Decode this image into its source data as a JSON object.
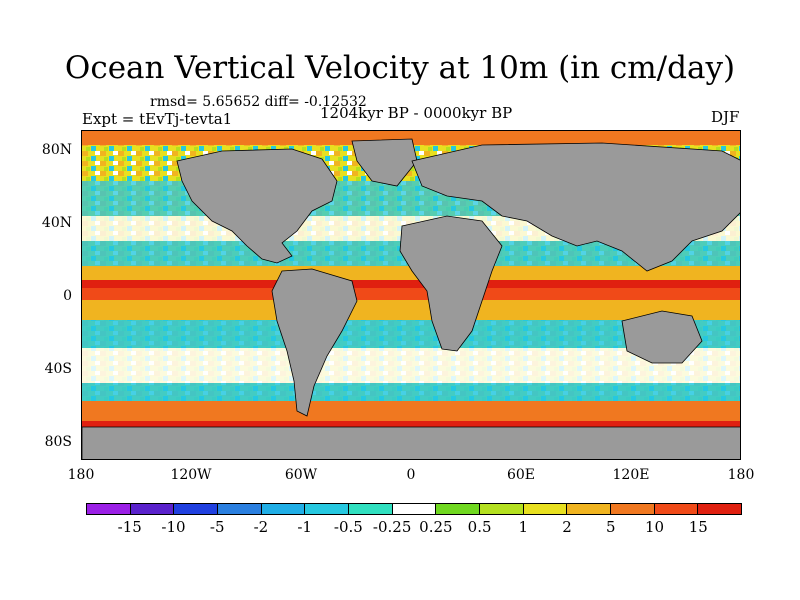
{
  "title": "Ocean Vertical Velocity at 10m (in cm/day)",
  "stats": "rmsd= 5.65652 diff= -0.12532",
  "experiment": "Expt = tEvTj-tevta1",
  "period": "1204kyr BP - 0000kyr BP",
  "season": "DJF",
  "lat_ticks": [
    "80N",
    "40N",
    "0",
    "40S",
    "80S"
  ],
  "lon_ticks": [
    "180",
    "120W",
    "60W",
    "0",
    "60E",
    "120E",
    "180"
  ],
  "colorbar": {
    "labels": [
      "-15",
      "-10",
      "-5",
      "-2",
      "-1",
      "-0.5",
      "-0.25",
      "0.25",
      "0.5",
      "1",
      "2",
      "5",
      "10",
      "15"
    ],
    "colors": [
      "#9b20e6",
      "#5a22cc",
      "#2040e0",
      "#2a7fe0",
      "#20aee6",
      "#26c8e0",
      "#30e0c0",
      "#ffffff",
      "#70d820",
      "#b4e020",
      "#e8e020",
      "#f0b420",
      "#f07820",
      "#f04a18",
      "#e02010"
    ]
  },
  "map": {
    "land_color": "#9a9a9a",
    "coastline_color": "#000000"
  }
}
